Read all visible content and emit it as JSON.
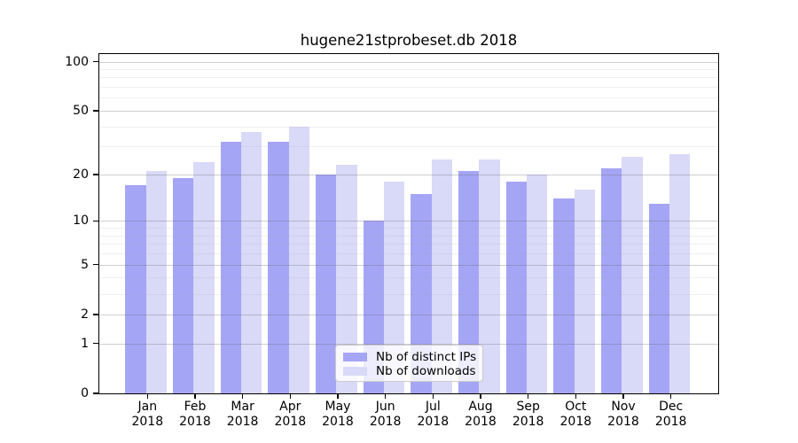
{
  "chart_data": {
    "type": "bar",
    "title": "hugene21stprobeset.db 2018",
    "categories": [
      {
        "month": "Jan",
        "year": "2018"
      },
      {
        "month": "Feb",
        "year": "2018"
      },
      {
        "month": "Mar",
        "year": "2018"
      },
      {
        "month": "Apr",
        "year": "2018"
      },
      {
        "month": "May",
        "year": "2018"
      },
      {
        "month": "Jun",
        "year": "2018"
      },
      {
        "month": "Jul",
        "year": "2018"
      },
      {
        "month": "Aug",
        "year": "2018"
      },
      {
        "month": "Sep",
        "year": "2018"
      },
      {
        "month": "Oct",
        "year": "2018"
      },
      {
        "month": "Nov",
        "year": "2018"
      },
      {
        "month": "Dec",
        "year": "2018"
      }
    ],
    "series": [
      {
        "name": "Nb of distinct IPs",
        "color": "#a5a5f5",
        "values": [
          17,
          19,
          32,
          32,
          20,
          10,
          15,
          21,
          18,
          14,
          22,
          13
        ]
      },
      {
        "name": "Nb of downloads",
        "color": "#d9d9f8",
        "values": [
          21,
          24,
          37,
          40,
          23,
          18,
          25,
          25,
          20,
          16,
          26,
          27
        ]
      }
    ],
    "y_axis": {
      "scale": "log1p",
      "ylim": [
        0,
        100
      ],
      "ticks": [
        0,
        1,
        2,
        5,
        10,
        20,
        50,
        100
      ],
      "minor_ticks": [
        3,
        4,
        6,
        7,
        8,
        9,
        30,
        40,
        60,
        70,
        80,
        90
      ]
    },
    "legend": {
      "position": "lower center inside"
    },
    "grid": true,
    "axis_color": "#000000",
    "major_grid_color": "#cfcfcf",
    "minor_grid_color": "#ededed"
  }
}
